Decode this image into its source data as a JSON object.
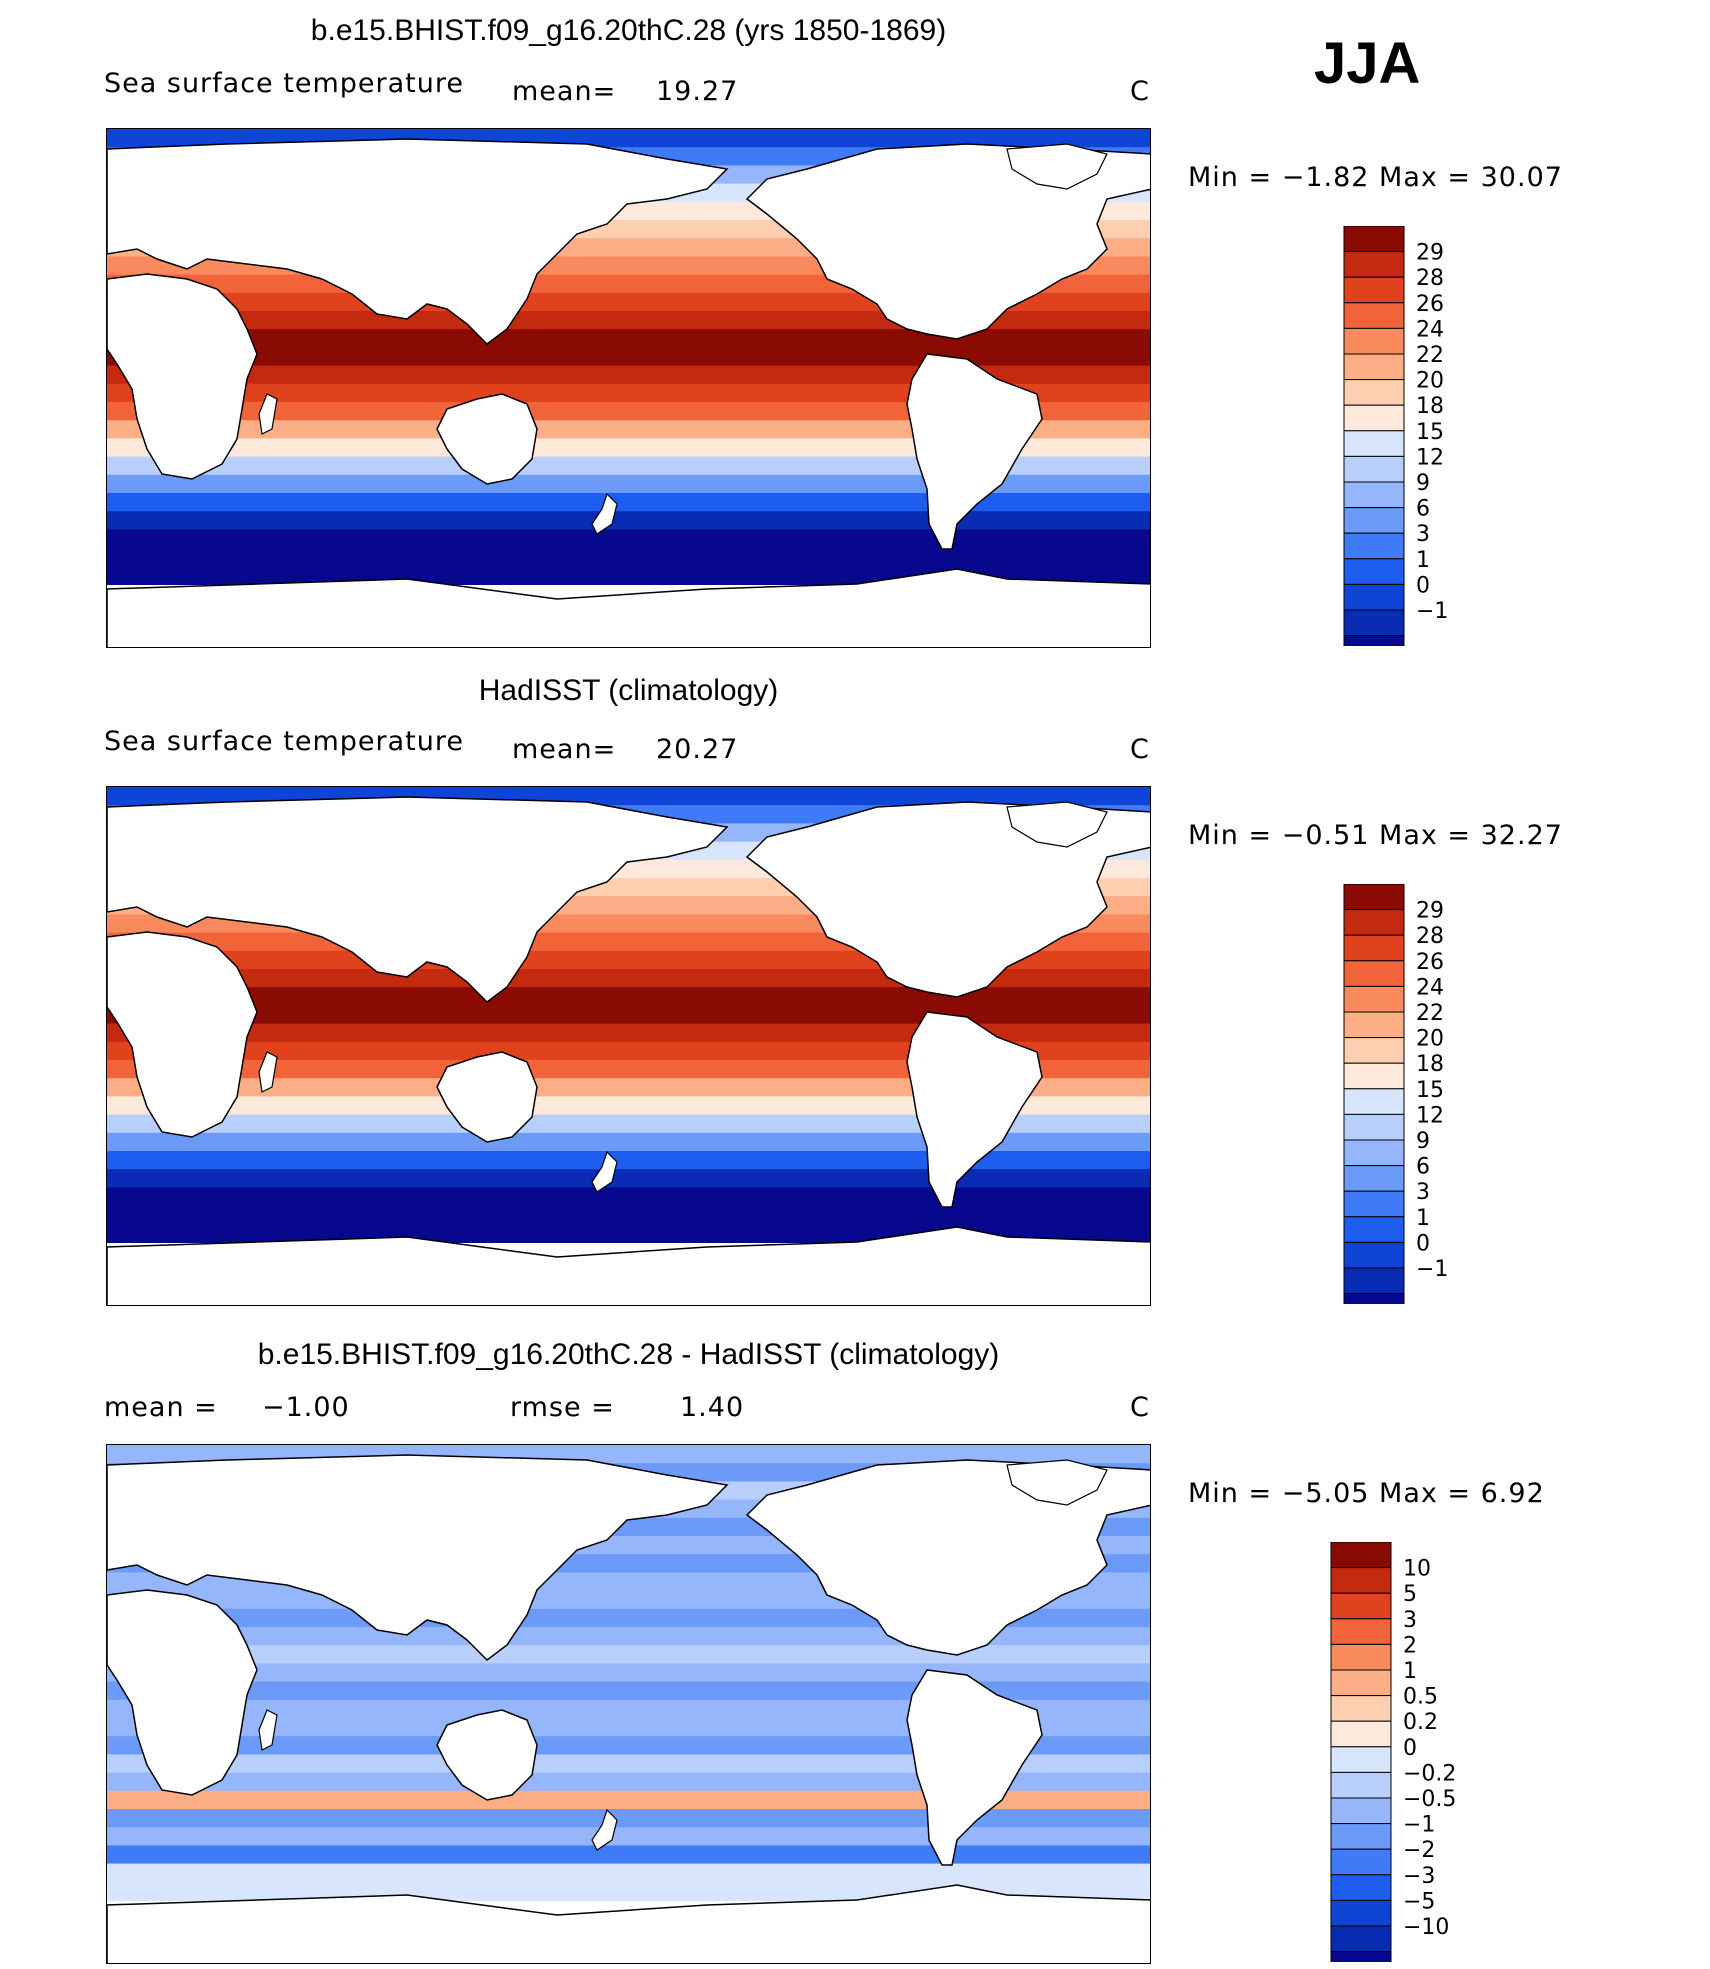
{
  "season": "JJA",
  "panels": [
    {
      "title": "b.e15.BHIST.f09_g16.20thC.28 (yrs 1850-1869)",
      "variable": "Sea surface temperature",
      "stat1_label": "mean=",
      "stat1_value": "19.27",
      "stat2_label": "",
      "stat2_value": "",
      "units": "C",
      "minmax": "Min =   −1.82  Max =    30.07",
      "palette": [
        "#08088f",
        "#0a2bb4",
        "#0f45d6",
        "#1d5ef0",
        "#3f7bf7",
        "#6b9af8",
        "#95b6fa",
        "#b9cffb",
        "#d8e6fd",
        "#fde9dc",
        "#fdcfb0",
        "#fcae86",
        "#f88a5e",
        "#f1643a",
        "#e0421e",
        "#c42a0f",
        "#8a0a04"
      ],
      "levels": [
        "29",
        "28",
        "26",
        "24",
        "22",
        "20",
        "18",
        "15",
        "12",
        "9",
        "6",
        "3",
        "1",
        "0",
        "−1"
      ]
    },
    {
      "title": "HadISST (climatology)",
      "variable": "Sea surface temperature",
      "stat1_label": "mean=",
      "stat1_value": "20.27",
      "stat2_label": "",
      "stat2_value": "",
      "units": "C",
      "minmax": "Min =   −0.51  Max =    32.27",
      "palette": [
        "#08088f",
        "#0a2bb4",
        "#0f45d6",
        "#1d5ef0",
        "#3f7bf7",
        "#6b9af8",
        "#95b6fa",
        "#b9cffb",
        "#d8e6fd",
        "#fde9dc",
        "#fdcfb0",
        "#fcae86",
        "#f88a5e",
        "#f1643a",
        "#e0421e",
        "#c42a0f",
        "#8a0a04"
      ],
      "levels": [
        "29",
        "28",
        "26",
        "24",
        "22",
        "20",
        "18",
        "15",
        "12",
        "9",
        "6",
        "3",
        "1",
        "0",
        "−1"
      ]
    },
    {
      "title": "b.e15.BHIST.f09_g16.20thC.28 - HadISST (climatology)",
      "variable": "",
      "stat1_label": "mean  =",
      "stat1_value": "−1.00",
      "stat2_label": "rmse  =",
      "stat2_value": "1.40",
      "units": "C",
      "minmax": "Min =   −5.05  Max =      6.92",
      "palette": [
        "#08088f",
        "#0a2bb4",
        "#0f45d6",
        "#1d5ef0",
        "#3f7bf7",
        "#6b9af8",
        "#95b6fa",
        "#b9cffb",
        "#d8e6fd",
        "#fde9dc",
        "#fdcfb0",
        "#fcae86",
        "#f88a5e",
        "#f1643a",
        "#e0421e",
        "#c42a0f",
        "#8a0a04"
      ],
      "levels": [
        "10",
        "5",
        "3",
        "2",
        "1",
        "0.5",
        "0.2",
        "0",
        "−0.2",
        "−0.5",
        "−1",
        "−2",
        "−3",
        "−5",
        "−10"
      ]
    }
  ]
}
